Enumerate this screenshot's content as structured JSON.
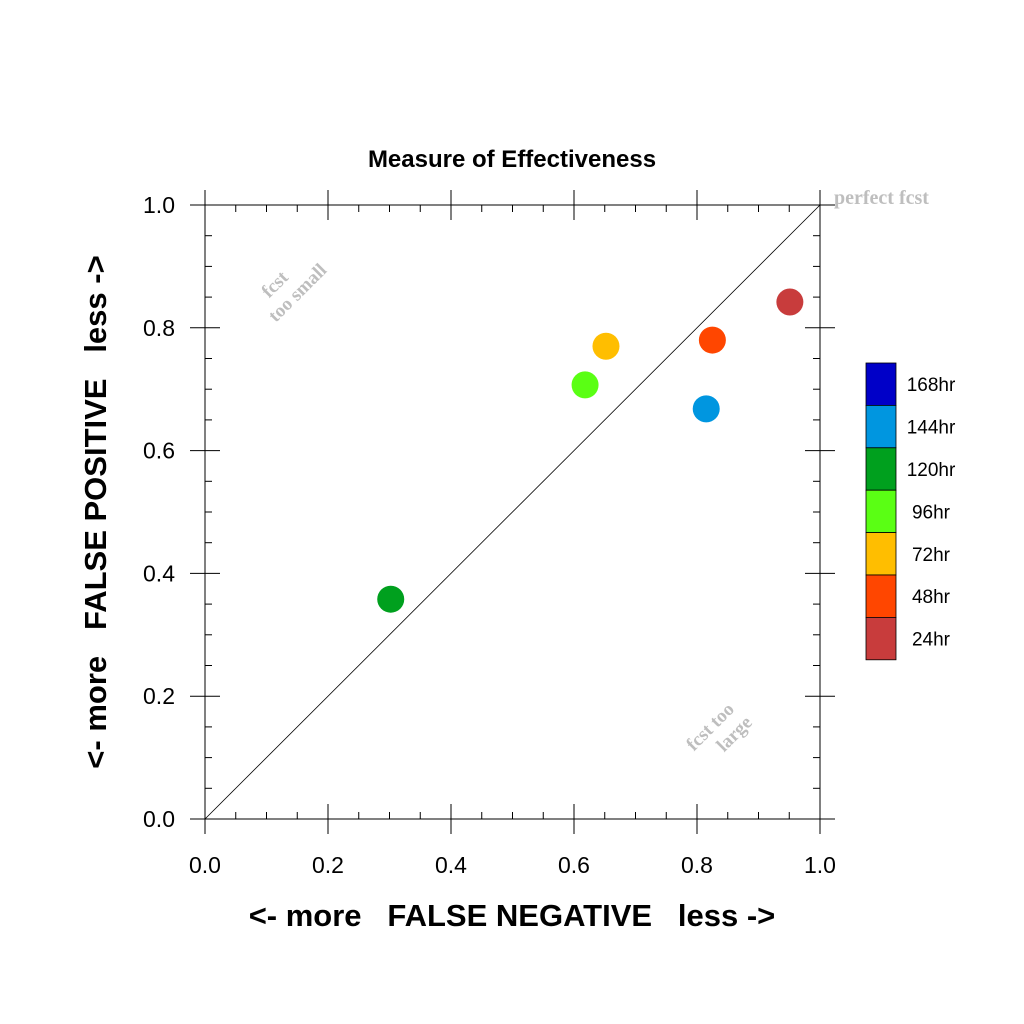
{
  "chart_data": {
    "type": "scatter",
    "title": "Measure of Effectiveness",
    "xlabel": "<- more   FALSE NEGATIVE   less ->",
    "ylabel": "<- more   FALSE POSITIVE   less ->",
    "xlim": [
      0.0,
      1.0
    ],
    "ylim": [
      0.0,
      1.0
    ],
    "x_ticks": [
      "0.0",
      "0.2",
      "0.4",
      "0.6",
      "0.8",
      "1.0"
    ],
    "y_ticks": [
      "0.0",
      "0.2",
      "0.4",
      "0.6",
      "0.8",
      "1.0"
    ],
    "reference_line": {
      "from": [
        0,
        0
      ],
      "to": [
        1,
        1
      ]
    },
    "annotations": {
      "perfect": "perfect fcst",
      "too_small_line1": "fcst",
      "too_small_line2": "too small",
      "too_large_line1": "fcst too",
      "too_large_line2": "large"
    },
    "series": [
      {
        "name": "168hr",
        "color": "#0000C8",
        "x": null,
        "y": null
      },
      {
        "name": "144hr",
        "color": "#0096E0",
        "x": 0.815,
        "y": 0.668
      },
      {
        "name": "120hr",
        "color": "#00A01E",
        "x": 0.302,
        "y": 0.358
      },
      {
        "name": "96hr",
        "color": "#5AFF14",
        "x": 0.618,
        "y": 0.707
      },
      {
        "name": "72hr",
        "color": "#FFBE00",
        "x": 0.652,
        "y": 0.77
      },
      {
        "name": "48hr",
        "color": "#FF4600",
        "x": 0.825,
        "y": 0.78
      },
      {
        "name": "24hr",
        "color": "#C83C3C",
        "x": 0.951,
        "y": 0.842
      }
    ],
    "annotation_color": "#BEBEBE"
  }
}
